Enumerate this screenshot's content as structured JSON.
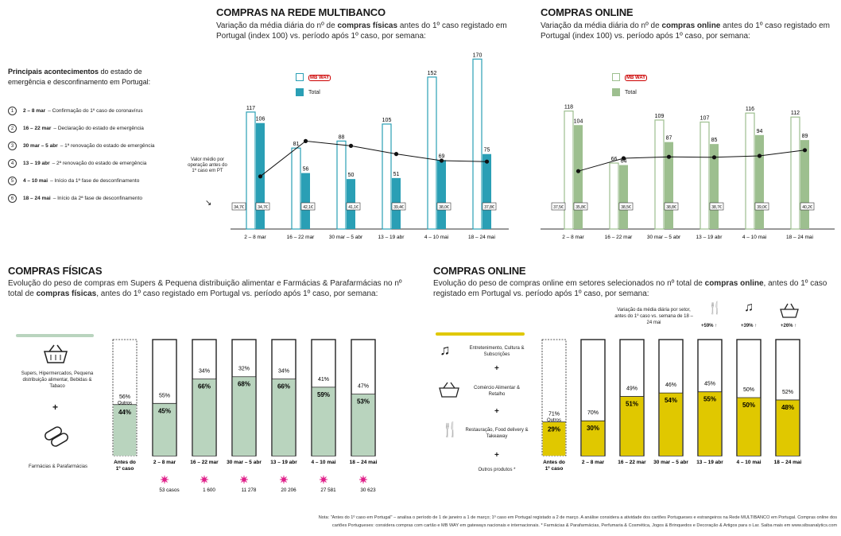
{
  "top_left": {
    "title": "COMPRAS NA REDE MULTIBANCO",
    "subtitle_parts": [
      "Variação da média diária do nº de ",
      "compras físicas",
      " antes do 1º caso registado em Portugal (index 100) vs. período após 1º caso, por semana:"
    ],
    "legend_mbway": "MB WAY",
    "legend_total": "Total",
    "avg_label": "Valor médio por operação antes do 1º caso em PT"
  },
  "top_right": {
    "title": "COMPRAS ONLINE",
    "subtitle_parts": [
      "Variação da média diária do nº de ",
      "compras online",
      " antes do 1º caso registado em Portugal (index 100) vs. período após 1º caso, por semana:"
    ],
    "legend_mbway": "MB WAY",
    "legend_total": "Total"
  },
  "events": {
    "title_bold": "Principais acontecimentos",
    "title_rest": " do estado de emergência e desconfinamento em Portugal:",
    "items": [
      {
        "num": "1",
        "date": "2 – 8 mar",
        "text": "– Confirmação do 1º caso de coronavírus"
      },
      {
        "num": "2",
        "date": "16 – 22 mar",
        "text": "– Declaração do estado de emergência"
      },
      {
        "num": "3",
        "date": "30 mar – 5 abr",
        "text": "– 1ª renovação do estado de emergência"
      },
      {
        "num": "4",
        "date": "13 – 19 abr",
        "text": "– 2ª renovação do estado de emergência"
      },
      {
        "num": "5",
        "date": "4 – 10 mai",
        "text": "– Início da 1ª fase de desconfinamento"
      },
      {
        "num": "6",
        "date": "18 – 24 mai",
        "text": "– Início da 2ª fase de desconfinamento"
      }
    ]
  },
  "bottom_left": {
    "title": "COMPRAS FÍSICAS",
    "subtitle_parts": [
      "Evolução do peso de compras em Supers & Pequena distribuição alimentar e Farmácias & Parafarmácias no nº total de ",
      "compras físicas",
      ", antes do 1º caso registado em Portugal vs. período após 1º caso, por semana:"
    ],
    "supers_label": "Supers, Hipermercados, Pequena distribuição alimentar, Bebidas & Tabaco",
    "plus": "+",
    "farm_label": "Farmácias & Parafarmácias",
    "outros": "Outros"
  },
  "bottom_right": {
    "title": "COMPRAS ONLINE",
    "subtitle_parts": [
      "Evolução do peso de compras online em setores selecionados no nº total de ",
      "compras online",
      ", antes do 1º caso registado em Portugal vs. período após 1º caso, por semana:"
    ],
    "legend_items": [
      "Entretenimento, Cultura & Subscrições",
      "Comércio Alimentar & Retalho",
      "Restauração, Food delivery & Takeaway",
      "Outros produtos *"
    ],
    "plus": "+",
    "outros": "Outros",
    "variation_note": "Variação da média diária por setor, antes do 1º caso vs. semana de 18 – 24 mai",
    "variations": [
      "+59% ↑",
      "+39% ↑",
      "+26% ↑"
    ]
  },
  "footnote": {
    "line1": "Nota: \"Antes do 1º caso em Portugal\" – analisa o período de 1 de janeiro a 1 de março; 1º caso em Portugal registado a 2 de março. A análise considera a atividade dos cartões Portugueses e estrangeiros na Rede MULTIBANCO em Portugal. Compras online dos",
    "line2": "cartões Portugueses: considera compras com cartão e MB WAY em gateways nacionais e internacionais. * Farmácias & Parafarmácias, Perfumaria & Cosmética, Jogos & Brinquedos e Decoração & Artigos para o Lar. Saiba mais em www.sibsanalytics.com"
  },
  "chart_data": [
    {
      "type": "bar",
      "title": "COMPRAS NA REDE MULTIBANCO",
      "categories": [
        "2 – 8 mar",
        "16 – 22 mar",
        "30 mar – 5 abr",
        "13 – 19 abr",
        "4 – 10 mai",
        "18 – 24 mai"
      ],
      "series": [
        {
          "name": "MB WAY",
          "values": [
            117,
            81,
            88,
            105,
            152,
            170
          ],
          "color": "#2a9fb5"
        },
        {
          "name": "Total",
          "values": [
            106,
            56,
            50,
            51,
            69,
            75
          ],
          "color": "#2a9fb5"
        }
      ],
      "avg_before": "34,7€",
      "avg_values": [
        "34,7€",
        "42,1€",
        "41,1€",
        "39,4€",
        "38,0€",
        "37,8€"
      ],
      "ylim": [
        0,
        175
      ]
    },
    {
      "type": "bar",
      "title": "COMPRAS ONLINE",
      "categories": [
        "2 – 8 mar",
        "16 – 22 mar",
        "30 mar – 5 abr",
        "13 – 19 abr",
        "4 – 10 mai",
        "18 – 24 mai"
      ],
      "series": [
        {
          "name": "MB WAY",
          "values": [
            118,
            66,
            109,
            107,
            116,
            112
          ],
          "color": "#9dbf8f"
        },
        {
          "name": "Total",
          "values": [
            104,
            64,
            87,
            85,
            94,
            89
          ],
          "color": "#9dbf8f"
        }
      ],
      "avg_before": "37,5€",
      "avg_values": [
        "35,8€",
        "38,5€",
        "38,8€",
        "38,7€",
        "39,0€",
        "40,2€"
      ],
      "ylim": [
        0,
        175
      ]
    },
    {
      "type": "bar",
      "title": "COMPRAS FÍSICAS",
      "categories": [
        "Antes do 1º caso",
        "2 – 8 mar",
        "16 – 22 mar",
        "30 mar – 5 abr",
        "13 – 19 abr",
        "4 – 10 mai",
        "18 – 24 mai"
      ],
      "selected": [
        44,
        45,
        66,
        68,
        66,
        59,
        53
      ],
      "outros": [
        56,
        55,
        34,
        32,
        34,
        41,
        47
      ],
      "cases": [
        "",
        "53 casos",
        "1 600",
        "11 278",
        "20 206",
        "27 581",
        "30 623"
      ],
      "color": "#b9d4be"
    },
    {
      "type": "bar",
      "title": "COMPRAS ONLINE",
      "categories": [
        "Antes do 1º caso",
        "2 – 8 mar",
        "16 – 22 mar",
        "30 mar – 5 abr",
        "13 – 19 abr",
        "4 – 10 mai",
        "18 – 24 mai"
      ],
      "selected": [
        29,
        30,
        51,
        54,
        55,
        50,
        48
      ],
      "outros": [
        71,
        70,
        49,
        46,
        45,
        50,
        52
      ],
      "color": "#e0c800"
    }
  ]
}
